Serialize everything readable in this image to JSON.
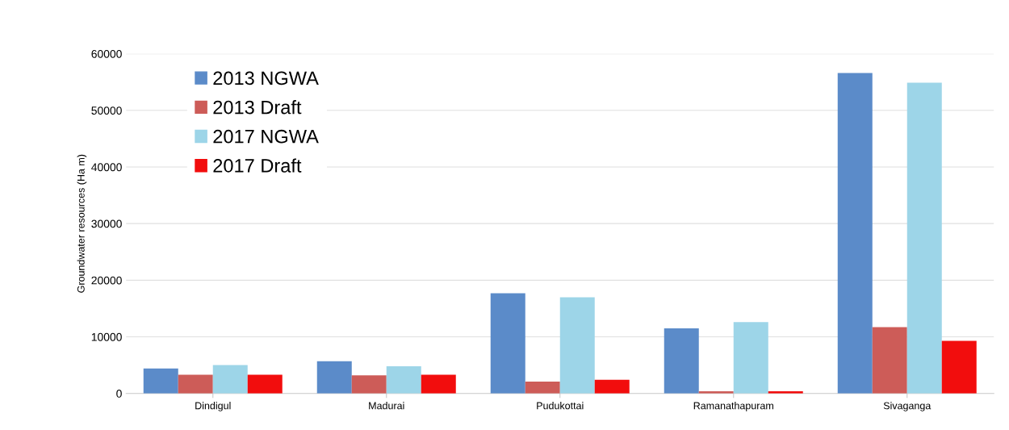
{
  "chart_data": {
    "type": "bar",
    "ylabel": "Groundwater resources (Ha m)",
    "categories": [
      "Dindigul",
      "Madurai",
      "Pudukottai",
      "Ramanathapuram",
      "Sivaganga"
    ],
    "series": [
      {
        "name": "2013 NGWA",
        "color": "#5b8bc9",
        "values": [
          4400,
          5700,
          17700,
          11500,
          56600
        ]
      },
      {
        "name": "2013 Draft",
        "color": "#cd5c58",
        "values": [
          3300,
          3200,
          2100,
          400,
          11700
        ]
      },
      {
        "name": "2017 NGWA",
        "color": "#9dd5e8",
        "values": [
          5000,
          4800,
          17000,
          12600,
          54900
        ]
      },
      {
        "name": "2017 Draft",
        "color": "#f20d0d",
        "values": [
          3300,
          3300,
          2400,
          400,
          9300
        ]
      }
    ],
    "ylim": [
      0,
      60000
    ],
    "yticks": [
      0,
      10000,
      20000,
      30000,
      40000,
      50000,
      60000
    ],
    "grid": "y",
    "legend": "top left"
  }
}
